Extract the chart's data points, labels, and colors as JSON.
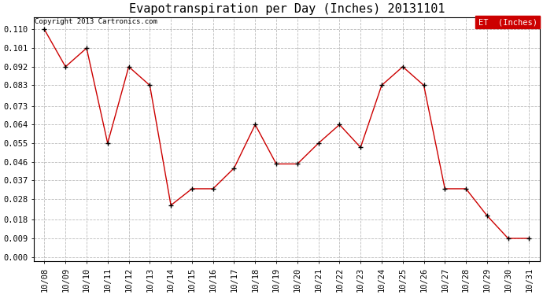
{
  "title": "Evapotranspiration per Day (Inches) 20131101",
  "copyright_text": "Copyright 2013 Cartronics.com",
  "legend_label": "ET  (Inches)",
  "legend_bg": "#cc0000",
  "legend_fg": "#ffffff",
  "x_labels": [
    "10/08",
    "10/09",
    "10/10",
    "10/11",
    "10/12",
    "10/13",
    "10/14",
    "10/15",
    "10/16",
    "10/17",
    "10/18",
    "10/19",
    "10/20",
    "10/21",
    "10/22",
    "10/23",
    "10/24",
    "10/25",
    "10/26",
    "10/27",
    "10/28",
    "10/29",
    "10/30",
    "10/31"
  ],
  "y_values": [
    0.11,
    0.092,
    0.101,
    0.055,
    0.092,
    0.083,
    0.025,
    0.033,
    0.033,
    0.043,
    0.064,
    0.045,
    0.045,
    0.055,
    0.064,
    0.053,
    0.083,
    0.092,
    0.083,
    0.033,
    0.033,
    0.02,
    0.009,
    0.009
  ],
  "line_color": "#cc0000",
  "marker_color": "#000000",
  "grid_color": "#bbbbbb",
  "bg_color": "#ffffff",
  "ylim": [
    -0.002,
    0.116
  ],
  "yticks": [
    0.0,
    0.009,
    0.018,
    0.028,
    0.037,
    0.046,
    0.055,
    0.064,
    0.073,
    0.083,
    0.092,
    0.101,
    0.11
  ],
  "title_fontsize": 11,
  "tick_fontsize": 7.5
}
